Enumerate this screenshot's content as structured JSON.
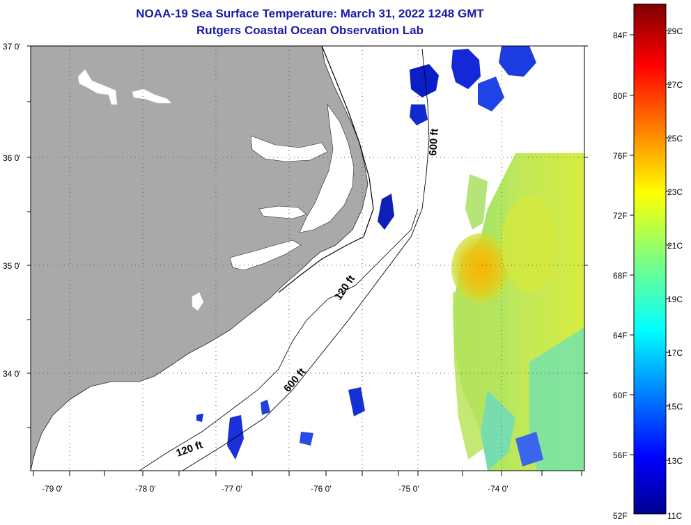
{
  "title": {
    "line1": "NOAA-19 Sea Surface Temperature:  March 31, 2022 1248 GMT",
    "line2": "Rutgers Coastal Ocean Observation Lab"
  },
  "map": {
    "lat_labels": [
      "37 0'",
      "36 0'",
      "35 0'",
      "34 0'"
    ],
    "lon_labels": [
      "-79 0'",
      "-78 0'",
      "-77 0'",
      "-76 0'",
      "-75 0'",
      "-74 0'"
    ],
    "contours": [
      {
        "label": "120 ft"
      },
      {
        "label": "120 ft"
      },
      {
        "label": "600 ft"
      },
      {
        "label": "600 ft"
      }
    ],
    "colors": {
      "land": "#a9a9a9",
      "grid": "#555555"
    }
  },
  "colorbar": {
    "fahrenheit_labels": [
      "84F",
      "80F",
      "76F",
      "72F",
      "68F",
      "64F",
      "60F",
      "56F",
      "52F"
    ],
    "celsius_labels": [
      "29C",
      "27C",
      "25C",
      "23C",
      "21C",
      "19C",
      "17C",
      "15C",
      "13C",
      "11C"
    ],
    "range_c": [
      11,
      30
    ],
    "colormap": "jet"
  }
}
